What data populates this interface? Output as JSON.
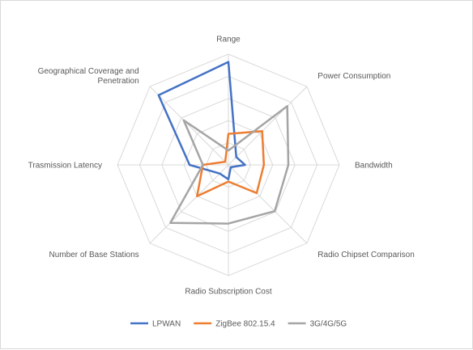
{
  "chart_data": {
    "type": "radar",
    "title": "",
    "categories": [
      "Range",
      "Power Consumption",
      "Bandwidth",
      "Radio Chipset Comparison",
      "Radio Subscription Cost",
      "Number of Base Stations",
      "Trasmission Latency",
      [
        "Geographical Coverage and",
        "Penetration"
      ]
    ],
    "rmax": 10,
    "rings": 5,
    "grid": true,
    "legend_position": "bottom",
    "series": [
      {
        "name": "LPWAN",
        "color": "#4472c4",
        "values": [
          9.3,
          1.0,
          1.5,
          0.3,
          1.3,
          1.1,
          3.5,
          8.9
        ]
      },
      {
        "name": "ZigBee 802.15.4",
        "color": "#ed7d31",
        "values": [
          2.8,
          4.3,
          3.2,
          3.6,
          1.5,
          4.0,
          2.3,
          0.4
        ]
      },
      {
        "name": "3G/4G/5G",
        "color": "#a5a5a5",
        "values": [
          1.3,
          7.5,
          5.4,
          5.9,
          5.3,
          7.4,
          2.3,
          5.7
        ]
      }
    ]
  }
}
